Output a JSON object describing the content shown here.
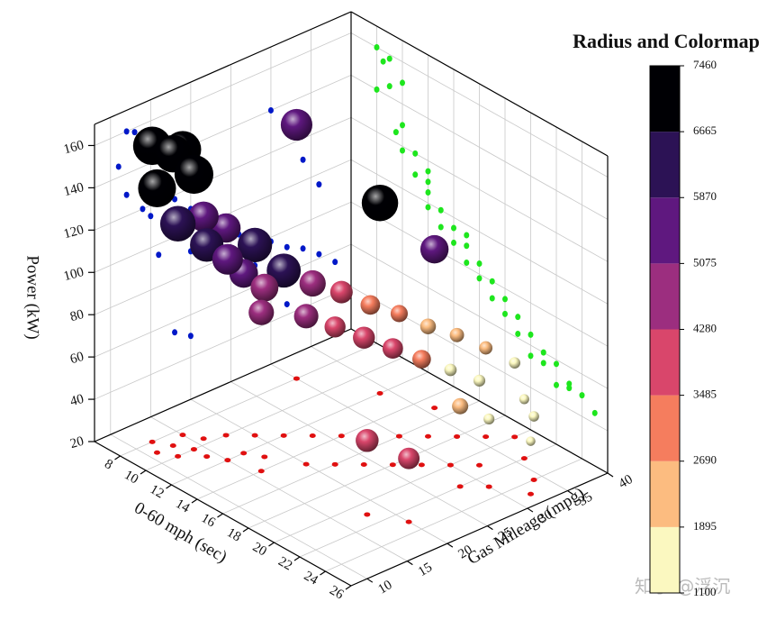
{
  "chart_data": {
    "type": "bubble3d",
    "x_label": "0-60 mph (sec)",
    "y_label": "Gas Mileage (mpg)",
    "z_label": "Power (kW)",
    "xlim": [
      6,
      26
    ],
    "ylim": [
      8,
      40
    ],
    "zlim": [
      20,
      170
    ],
    "xticks": [
      8,
      10,
      12,
      14,
      16,
      18,
      20,
      22,
      24,
      26
    ],
    "yticks": [
      10,
      15,
      20,
      25,
      30,
      35,
      40
    ],
    "zticks": [
      20,
      40,
      60,
      80,
      100,
      120,
      140,
      160
    ],
    "grid": true,
    "projection_colors": {
      "x_wall": "#0018c8",
      "y_wall": "#1ee61e",
      "floor": "#e01010"
    },
    "x": [
      8,
      9,
      8.5,
      10,
      9,
      10,
      9.5,
      11,
      10,
      12,
      11,
      12,
      13,
      12,
      14,
      13,
      15,
      14,
      16,
      15,
      17,
      16,
      18,
      17,
      19,
      18,
      20,
      19,
      21,
      22,
      20,
      23,
      24,
      22,
      25,
      21,
      23,
      8,
      12,
      15
    ],
    "y": [
      12,
      13,
      15,
      14,
      11,
      12,
      16,
      14,
      18,
      15,
      20,
      17,
      18,
      22,
      16,
      24,
      20,
      26,
      22,
      28,
      24,
      30,
      26,
      32,
      28,
      34,
      30,
      36,
      32,
      28,
      38,
      30,
      34,
      36,
      32,
      18,
      20,
      30,
      34,
      36
    ],
    "z": [
      160,
      158,
      155,
      150,
      145,
      130,
      125,
      120,
      118,
      115,
      110,
      105,
      100,
      98,
      95,
      92,
      90,
      88,
      85,
      82,
      80,
      78,
      75,
      72,
      70,
      68,
      65,
      62,
      60,
      58,
      55,
      52,
      50,
      48,
      45,
      55,
      50,
      140,
      110,
      95
    ],
    "sizes": [
      7200,
      7000,
      6900,
      7300,
      7100,
      6600,
      5500,
      6200,
      5300,
      5600,
      6400,
      5200,
      5000,
      6300,
      4500,
      4700,
      4300,
      3900,
      3600,
      3300,
      3800,
      2800,
      3500,
      2500,
      3100,
      2200,
      1800,
      2000,
      1700,
      2600,
      1600,
      1500,
      1400,
      1300,
      1200,
      4000,
      3700,
      5800,
      6800,
      5100
    ],
    "colorbar": {
      "title": "Radius and Colormap",
      "ticks": [
        1100,
        1895,
        2690,
        3485,
        4280,
        5075,
        5870,
        6665,
        7460
      ],
      "colors": [
        "#fbf8c0",
        "#fcbc80",
        "#f57d5e",
        "#d9466b",
        "#9c2e7f",
        "#5f187f",
        "#2c1255",
        "#000004"
      ]
    }
  },
  "watermark": "知乎 @浮沉"
}
